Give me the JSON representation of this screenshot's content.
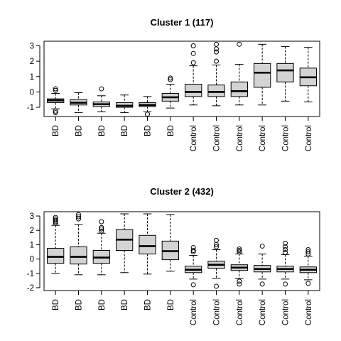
{
  "chart_data": [
    {
      "type": "boxplot",
      "title": "Cluster 1 (117)",
      "xlabel": "",
      "ylabel": "",
      "ylim": [
        -1.6,
        3.3
      ],
      "yticks": [
        -1,
        0,
        1,
        2,
        3
      ],
      "grid": false,
      "categories": [
        "BD",
        "BD",
        "BD",
        "BD",
        "BD",
        "BD",
        "Control",
        "Control",
        "Control",
        "Control",
        "Control",
        "Control"
      ],
      "boxes": [
        {
          "low": -1.1,
          "q1": -0.7,
          "median": -0.55,
          "q3": -0.45,
          "high": -0.1,
          "outliers": [
            0.2,
            0.1,
            -1.25,
            -1.35
          ]
        },
        {
          "low": -1.35,
          "q1": -0.85,
          "median": -0.7,
          "q3": -0.5,
          "high": -0.05,
          "outliers": []
        },
        {
          "low": -1.3,
          "q1": -0.95,
          "median": -0.8,
          "q3": -0.65,
          "high": -0.25,
          "outliers": [
            0.2
          ]
        },
        {
          "low": -1.35,
          "q1": -1.0,
          "median": -0.9,
          "q3": -0.7,
          "high": -0.2,
          "outliers": []
        },
        {
          "low": -1.3,
          "q1": -0.95,
          "median": -0.85,
          "q3": -0.7,
          "high": -0.3,
          "outliers": [
            -1.45
          ]
        },
        {
          "low": -1.05,
          "q1": -0.6,
          "median": -0.35,
          "q3": -0.1,
          "high": 0.5,
          "outliers": [
            0.8,
            0.9
          ]
        },
        {
          "low": -0.85,
          "q1": -0.3,
          "median": 0.0,
          "q3": 0.5,
          "high": 1.7,
          "outliers": [
            1.9,
            2.5,
            3.0
          ]
        },
        {
          "low": -0.9,
          "q1": -0.3,
          "median": 0.0,
          "q3": 0.45,
          "high": 1.75,
          "outliers": [
            2.0,
            2.6,
            2.8,
            3.1
          ]
        },
        {
          "low": -0.85,
          "q1": -0.3,
          "median": 0.05,
          "q3": 0.65,
          "high": 1.8,
          "outliers": [
            3.1
          ]
        },
        {
          "low": -0.85,
          "q1": 0.3,
          "median": 1.25,
          "q3": 1.85,
          "high": 3.1,
          "outliers": []
        },
        {
          "low": -0.6,
          "q1": 0.65,
          "median": 1.4,
          "q3": 1.85,
          "high": 2.95,
          "outliers": []
        },
        {
          "low": -0.65,
          "q1": 0.4,
          "median": 0.95,
          "q3": 1.55,
          "high": 2.9,
          "outliers": []
        }
      ]
    },
    {
      "type": "boxplot",
      "title": "Cluster 2 (432)",
      "xlabel": "",
      "ylabel": "",
      "ylim": [
        -2.2,
        3.3
      ],
      "yticks": [
        -2,
        -1,
        0,
        1,
        2,
        3
      ],
      "grid": false,
      "categories": [
        "BD",
        "BD",
        "BD",
        "BD",
        "BD",
        "BD",
        "Control",
        "Control",
        "Control",
        "Control",
        "Control",
        "Control"
      ],
      "boxes": [
        {
          "low": -1.0,
          "q1": -0.3,
          "median": 0.15,
          "q3": 0.75,
          "high": 2.35,
          "outliers": [
            2.5,
            2.6,
            2.7,
            2.8,
            2.9
          ]
        },
        {
          "low": -1.1,
          "q1": -0.35,
          "median": 0.15,
          "q3": 0.85,
          "high": 2.4,
          "outliers": [
            2.8,
            2.95,
            3.1
          ]
        },
        {
          "low": -1.1,
          "q1": -0.3,
          "median": 0.1,
          "q3": 0.6,
          "high": 1.8,
          "outliers": [
            1.95,
            2.1,
            2.2,
            2.6
          ]
        },
        {
          "low": -0.95,
          "q1": 0.6,
          "median": 1.35,
          "q3": 2.05,
          "high": 3.15,
          "outliers": []
        },
        {
          "low": -1.05,
          "q1": 0.35,
          "median": 0.9,
          "q3": 1.65,
          "high": 3.15,
          "outliers": []
        },
        {
          "low": -0.85,
          "q1": -0.05,
          "median": 0.55,
          "q3": 1.25,
          "high": 3.1,
          "outliers": []
        },
        {
          "low": -1.4,
          "q1": -0.95,
          "median": -0.75,
          "q3": -0.5,
          "high": 0.25,
          "outliers": [
            0.5,
            0.6,
            0.8,
            -1.8
          ]
        },
        {
          "low": -1.35,
          "q1": -0.65,
          "median": -0.4,
          "q3": -0.15,
          "high": 0.65,
          "outliers": [
            0.85,
            1.0,
            1.3,
            -1.9
          ]
        },
        {
          "low": -1.35,
          "q1": -0.8,
          "median": -0.6,
          "q3": -0.4,
          "high": 0.35,
          "outliers": [
            0.5,
            0.6,
            0.7,
            -1.55,
            -1.75
          ]
        },
        {
          "low": -1.4,
          "q1": -0.9,
          "median": -0.7,
          "q3": -0.45,
          "high": 0.35,
          "outliers": [
            0.9,
            -1.75
          ]
        },
        {
          "low": -1.4,
          "q1": -0.9,
          "median": -0.7,
          "q3": -0.5,
          "high": 0.3,
          "outliers": [
            0.45,
            0.65,
            0.85,
            1.1,
            -1.75
          ]
        },
        {
          "low": -1.45,
          "q1": -0.95,
          "median": -0.75,
          "q3": -0.55,
          "high": 0.2,
          "outliers": [
            0.35,
            0.5,
            0.65,
            -1.7
          ]
        }
      ]
    }
  ]
}
